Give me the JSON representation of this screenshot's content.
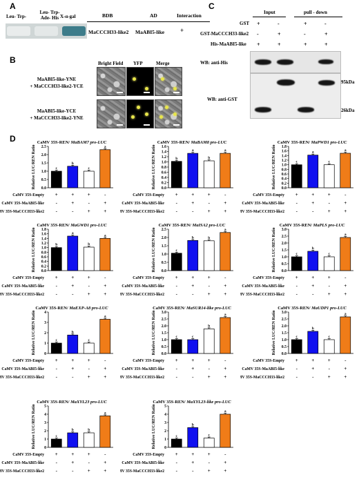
{
  "panelA": {
    "letter": "A",
    "media": [
      "Leu- Trp-",
      "Leu- Trp- Ade- His",
      "X-α-gal"
    ],
    "cols": [
      "BDB",
      "AD",
      "Interaction"
    ],
    "row": [
      "MaCCCH33-like2",
      "MaABI5-like",
      "+"
    ],
    "colors": {
      "white_growth": "#e9ecec",
      "blue_growth": "#3d7c8a",
      "plate": "#ffffff"
    }
  },
  "panelB": {
    "letter": "B",
    "cols": [
      "Bright Field",
      "YFP",
      "Merge"
    ],
    "rows": [
      "MaABI5-like-YNE\n+ MaCCCH33-like2-YCE",
      "MaABI5-like-YCE\n+ MaCCCH33-like2-YNE"
    ]
  },
  "panelC": {
    "letter": "C",
    "headers": [
      "Input",
      "pull - down"
    ],
    "rows": [
      {
        "label": "GST",
        "signs": [
          "+",
          "-",
          "+",
          "-"
        ]
      },
      {
        "label": "GST-MaCCCH33-like2",
        "signs": [
          "-",
          "+",
          "-",
          "+"
        ]
      },
      {
        "label": "His-MaABI5-like",
        "signs": [
          "+",
          "+",
          "+",
          "+"
        ]
      }
    ],
    "wb1": "WB: anti-His",
    "wb2": "WB: anti-GST",
    "markers": [
      "95kDa",
      "26kDa"
    ]
  },
  "panelD": {
    "letter": "D",
    "row_labels": [
      "CaMV 35S-Empty",
      "CaMV 35S-MaABI5-like",
      "CaMV 35S-MaCCCH33-like2"
    ],
    "signs": [
      [
        "+",
        "+",
        "+",
        "-"
      ],
      [
        "-",
        "+",
        "-",
        "+"
      ],
      [
        "-",
        "-",
        "+",
        "+"
      ]
    ],
    "ylabel": "Relative LUC/REN Ratio",
    "bar_colors": [
      "#000000",
      "#1010f0",
      "#ffffff",
      "#f07c18"
    ]
  },
  "chart_data": [
    {
      "type": "bar",
      "prefix": "CaMV 35S-REN/ ",
      "gene": "MaBAM7 pro-LUC",
      "ylim": [
        0,
        2.5
      ],
      "ticks": [
        "0.0",
        "0.5",
        "1.0",
        "1.5",
        "2.0",
        "2.5"
      ],
      "tickvals": [
        0,
        0.5,
        1,
        1.5,
        2,
        2.5
      ],
      "values": [
        1.0,
        1.3,
        1.0,
        2.3
      ],
      "letters": [
        "c",
        "b",
        "c",
        "a"
      ]
    },
    {
      "type": "bar",
      "prefix": "CaMV 35S-REN/ ",
      "gene": "MaBAM8 pro-LUC",
      "ylim": [
        0,
        1.6
      ],
      "ticks": [
        "0.0",
        "0.2",
        "0.4",
        "0.6",
        "0.8",
        "1.0",
        "1.2",
        "1.4",
        "1.6"
      ],
      "tickvals": [
        0,
        0.2,
        0.4,
        0.6,
        0.8,
        1.0,
        1.2,
        1.4,
        1.6
      ],
      "values": [
        1.02,
        1.33,
        1.04,
        1.33
      ],
      "letters": [
        "b",
        "a",
        "b",
        "a"
      ]
    },
    {
      "type": "bar",
      "prefix": "CaMV 35S-REN/ ",
      "gene": "MaPWD1 pro-LUC",
      "ylim": [
        0,
        1.8
      ],
      "ticks": [
        "0.0",
        "0.2",
        "0.4",
        "0.6",
        "0.8",
        "1.0",
        "1.2",
        "1.4",
        "1.6",
        "1.8"
      ],
      "tickvals": [
        0,
        0.2,
        0.4,
        0.6,
        0.8,
        1.0,
        1.2,
        1.4,
        1.6,
        1.8
      ],
      "values": [
        1.0,
        1.42,
        1.0,
        1.5
      ],
      "letters": [
        "c",
        "a",
        "c",
        "a"
      ]
    },
    {
      "type": "bar",
      "prefix": "CaMV 35S-REN/ ",
      "gene": "MaGWD1 pro-LUC",
      "ylim": [
        0,
        1.8
      ],
      "ticks": [
        "0.0",
        "0.2",
        "0.4",
        "0.6",
        "0.8",
        "1.0",
        "1.2",
        "1.4",
        "1.6",
        "1.8"
      ],
      "tickvals": [
        0,
        0.2,
        0.4,
        0.6,
        0.8,
        1.0,
        1.2,
        1.4,
        1.6,
        1.8
      ],
      "values": [
        1.0,
        1.5,
        1.02,
        1.4
      ],
      "letters": [
        "b",
        "a",
        "b",
        "a"
      ]
    },
    {
      "type": "bar",
      "prefix": "CaMV 35S-REN/ ",
      "gene": "MaISA2 pro-LUC",
      "ylim": [
        0,
        2.5
      ],
      "ticks": [
        "0.0",
        "0.5",
        "1.0",
        "1.5",
        "2.0",
        "2.5"
      ],
      "tickvals": [
        0,
        0.5,
        1,
        1.5,
        2,
        2.5
      ],
      "values": [
        1.05,
        1.82,
        1.8,
        2.3
      ],
      "letters": [
        "c",
        "b",
        "b",
        "a"
      ]
    },
    {
      "type": "bar",
      "prefix": "CaMV 35S-REN/ ",
      "gene": "MaPLS pro-LUC",
      "ylim": [
        0,
        3.0
      ],
      "ticks": [
        "0.0",
        "0.5",
        "1.0",
        "1.5",
        "2.0",
        "2.5",
        "3.0"
      ],
      "tickvals": [
        0,
        0.5,
        1,
        1.5,
        2,
        2.5,
        3
      ],
      "values": [
        1.0,
        1.4,
        1.0,
        2.4
      ],
      "letters": [
        "c",
        "b",
        "c",
        "a"
      ]
    },
    {
      "type": "bar",
      "prefix": "CaMV 35S-REN/ ",
      "gene": "MaEXP-A8 pro-LUC",
      "ylim": [
        0,
        4
      ],
      "ticks": [
        "0",
        "1",
        "2",
        "3",
        "4"
      ],
      "tickvals": [
        0,
        1,
        2,
        3,
        4
      ],
      "values": [
        1.0,
        1.78,
        1.0,
        3.3
      ],
      "letters": [
        "c",
        "b",
        "c",
        "a"
      ]
    },
    {
      "type": "bar",
      "prefix": "CaMV 35S-REN/ ",
      "gene": "MaSUR14-like pro-LUC",
      "ylim": [
        0,
        3.0
      ],
      "ticks": [
        "0.0",
        "0.5",
        "1.0",
        "1.5",
        "2.0",
        "2.5",
        "3.0"
      ],
      "tickvals": [
        0,
        0.5,
        1,
        1.5,
        2,
        2.5,
        3
      ],
      "values": [
        1.0,
        1.0,
        1.78,
        2.6
      ],
      "letters": [
        "c",
        "c",
        "b",
        "a"
      ]
    },
    {
      "type": "bar",
      "prefix": "CaMV 35S-REN/ ",
      "gene": "MaUDP1 pro-LUC",
      "ylim": [
        0,
        3.0
      ],
      "ticks": [
        "0.0",
        "0.5",
        "1.0",
        "1.5",
        "2.0",
        "2.5",
        "3.0"
      ],
      "tickvals": [
        0,
        0.5,
        1,
        1.5,
        2,
        2.5,
        3
      ],
      "values": [
        1.0,
        1.6,
        1.0,
        2.65
      ],
      "letters": [
        "c",
        "b",
        "c",
        "a"
      ]
    },
    {
      "type": "bar",
      "prefix": "CaMV 35S-REN/ ",
      "gene": "MaXYL23 pro-LUC",
      "ylim": [
        0,
        5
      ],
      "ticks": [
        "0",
        "1",
        "2",
        "3",
        "4",
        "5"
      ],
      "tickvals": [
        0,
        1,
        2,
        3,
        4,
        5
      ],
      "values": [
        1.0,
        1.75,
        1.75,
        3.8
      ],
      "letters": [
        "c",
        "b",
        "b",
        "a"
      ]
    },
    {
      "type": "bar",
      "prefix": "CaMV 35S-REN/ ",
      "gene": "MaXYL23-like pro-LUC",
      "ylim": [
        0,
        5
      ],
      "ticks": [
        "0",
        "1",
        "2",
        "3",
        "4",
        "5"
      ],
      "tickvals": [
        0,
        1,
        2,
        3,
        4,
        5
      ],
      "values": [
        1.0,
        2.38,
        1.12,
        4.0
      ],
      "letters": [
        "c",
        "b",
        "c",
        "a"
      ]
    }
  ]
}
